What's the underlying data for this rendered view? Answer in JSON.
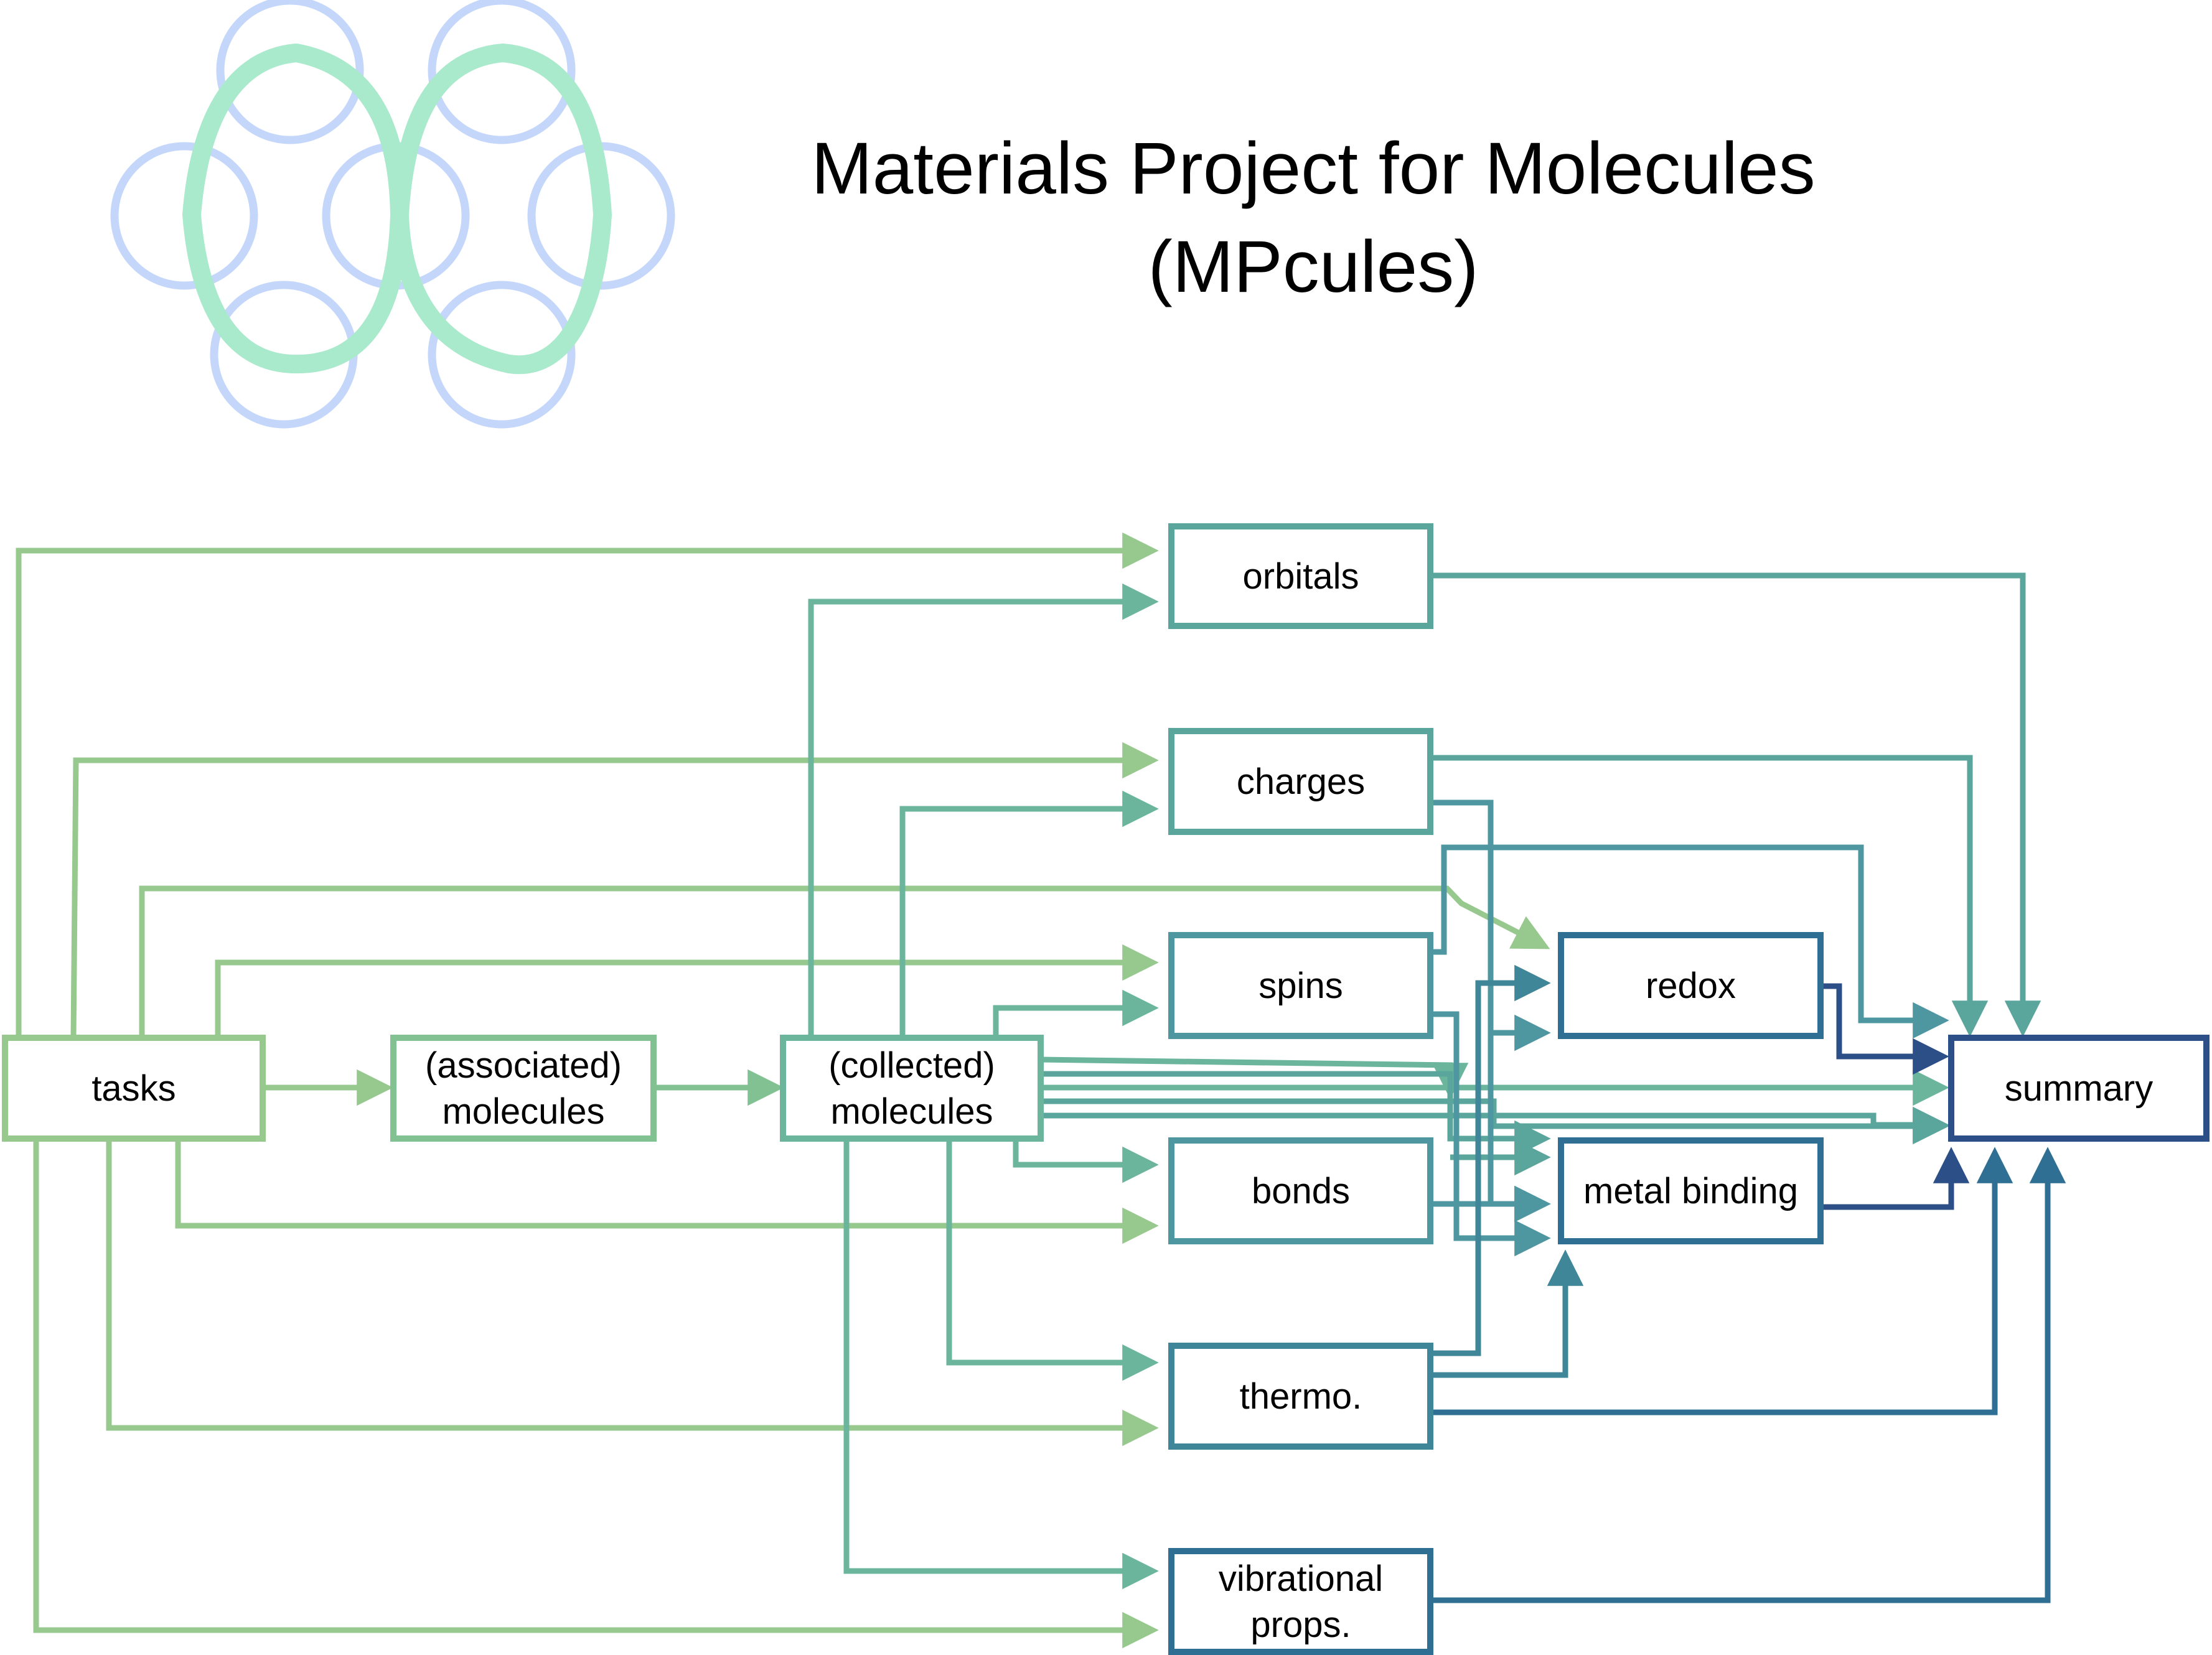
{
  "title": {
    "line1": "Materials Project for Molecules",
    "line2": "(MPcules)"
  },
  "logo": {
    "name": "mpcules-logo",
    "ring_color": "#c4d7fb",
    "ribbon_color": "#a9e9cc"
  },
  "nodes": {
    "tasks": {
      "label": [
        "tasks"
      ]
    },
    "associated": {
      "label": [
        "(associated)",
        "molecules"
      ]
    },
    "collected": {
      "label": [
        "(collected)",
        "molecules"
      ]
    },
    "orbitals": {
      "label": [
        "orbitals"
      ]
    },
    "charges": {
      "label": [
        "charges"
      ]
    },
    "spins": {
      "label": [
        "spins"
      ]
    },
    "bonds": {
      "label": [
        "bonds"
      ]
    },
    "thermo": {
      "label": [
        "thermo."
      ]
    },
    "vibrational": {
      "label": [
        "vibrational",
        "props."
      ]
    },
    "redox": {
      "label": [
        "redox"
      ]
    },
    "metal_binding": {
      "label": [
        "metal binding"
      ]
    },
    "summary": {
      "label": [
        "summary"
      ]
    }
  },
  "colors": {
    "light_green": "#97c98f",
    "green": "#82c292",
    "teal_light": "#6ab59b",
    "teal": "#5aa69c",
    "teal_mid": "#4f97a0",
    "teal_dark": "#3f8698",
    "blue_teal": "#2f6f94",
    "navy": "#2b4f86"
  }
}
